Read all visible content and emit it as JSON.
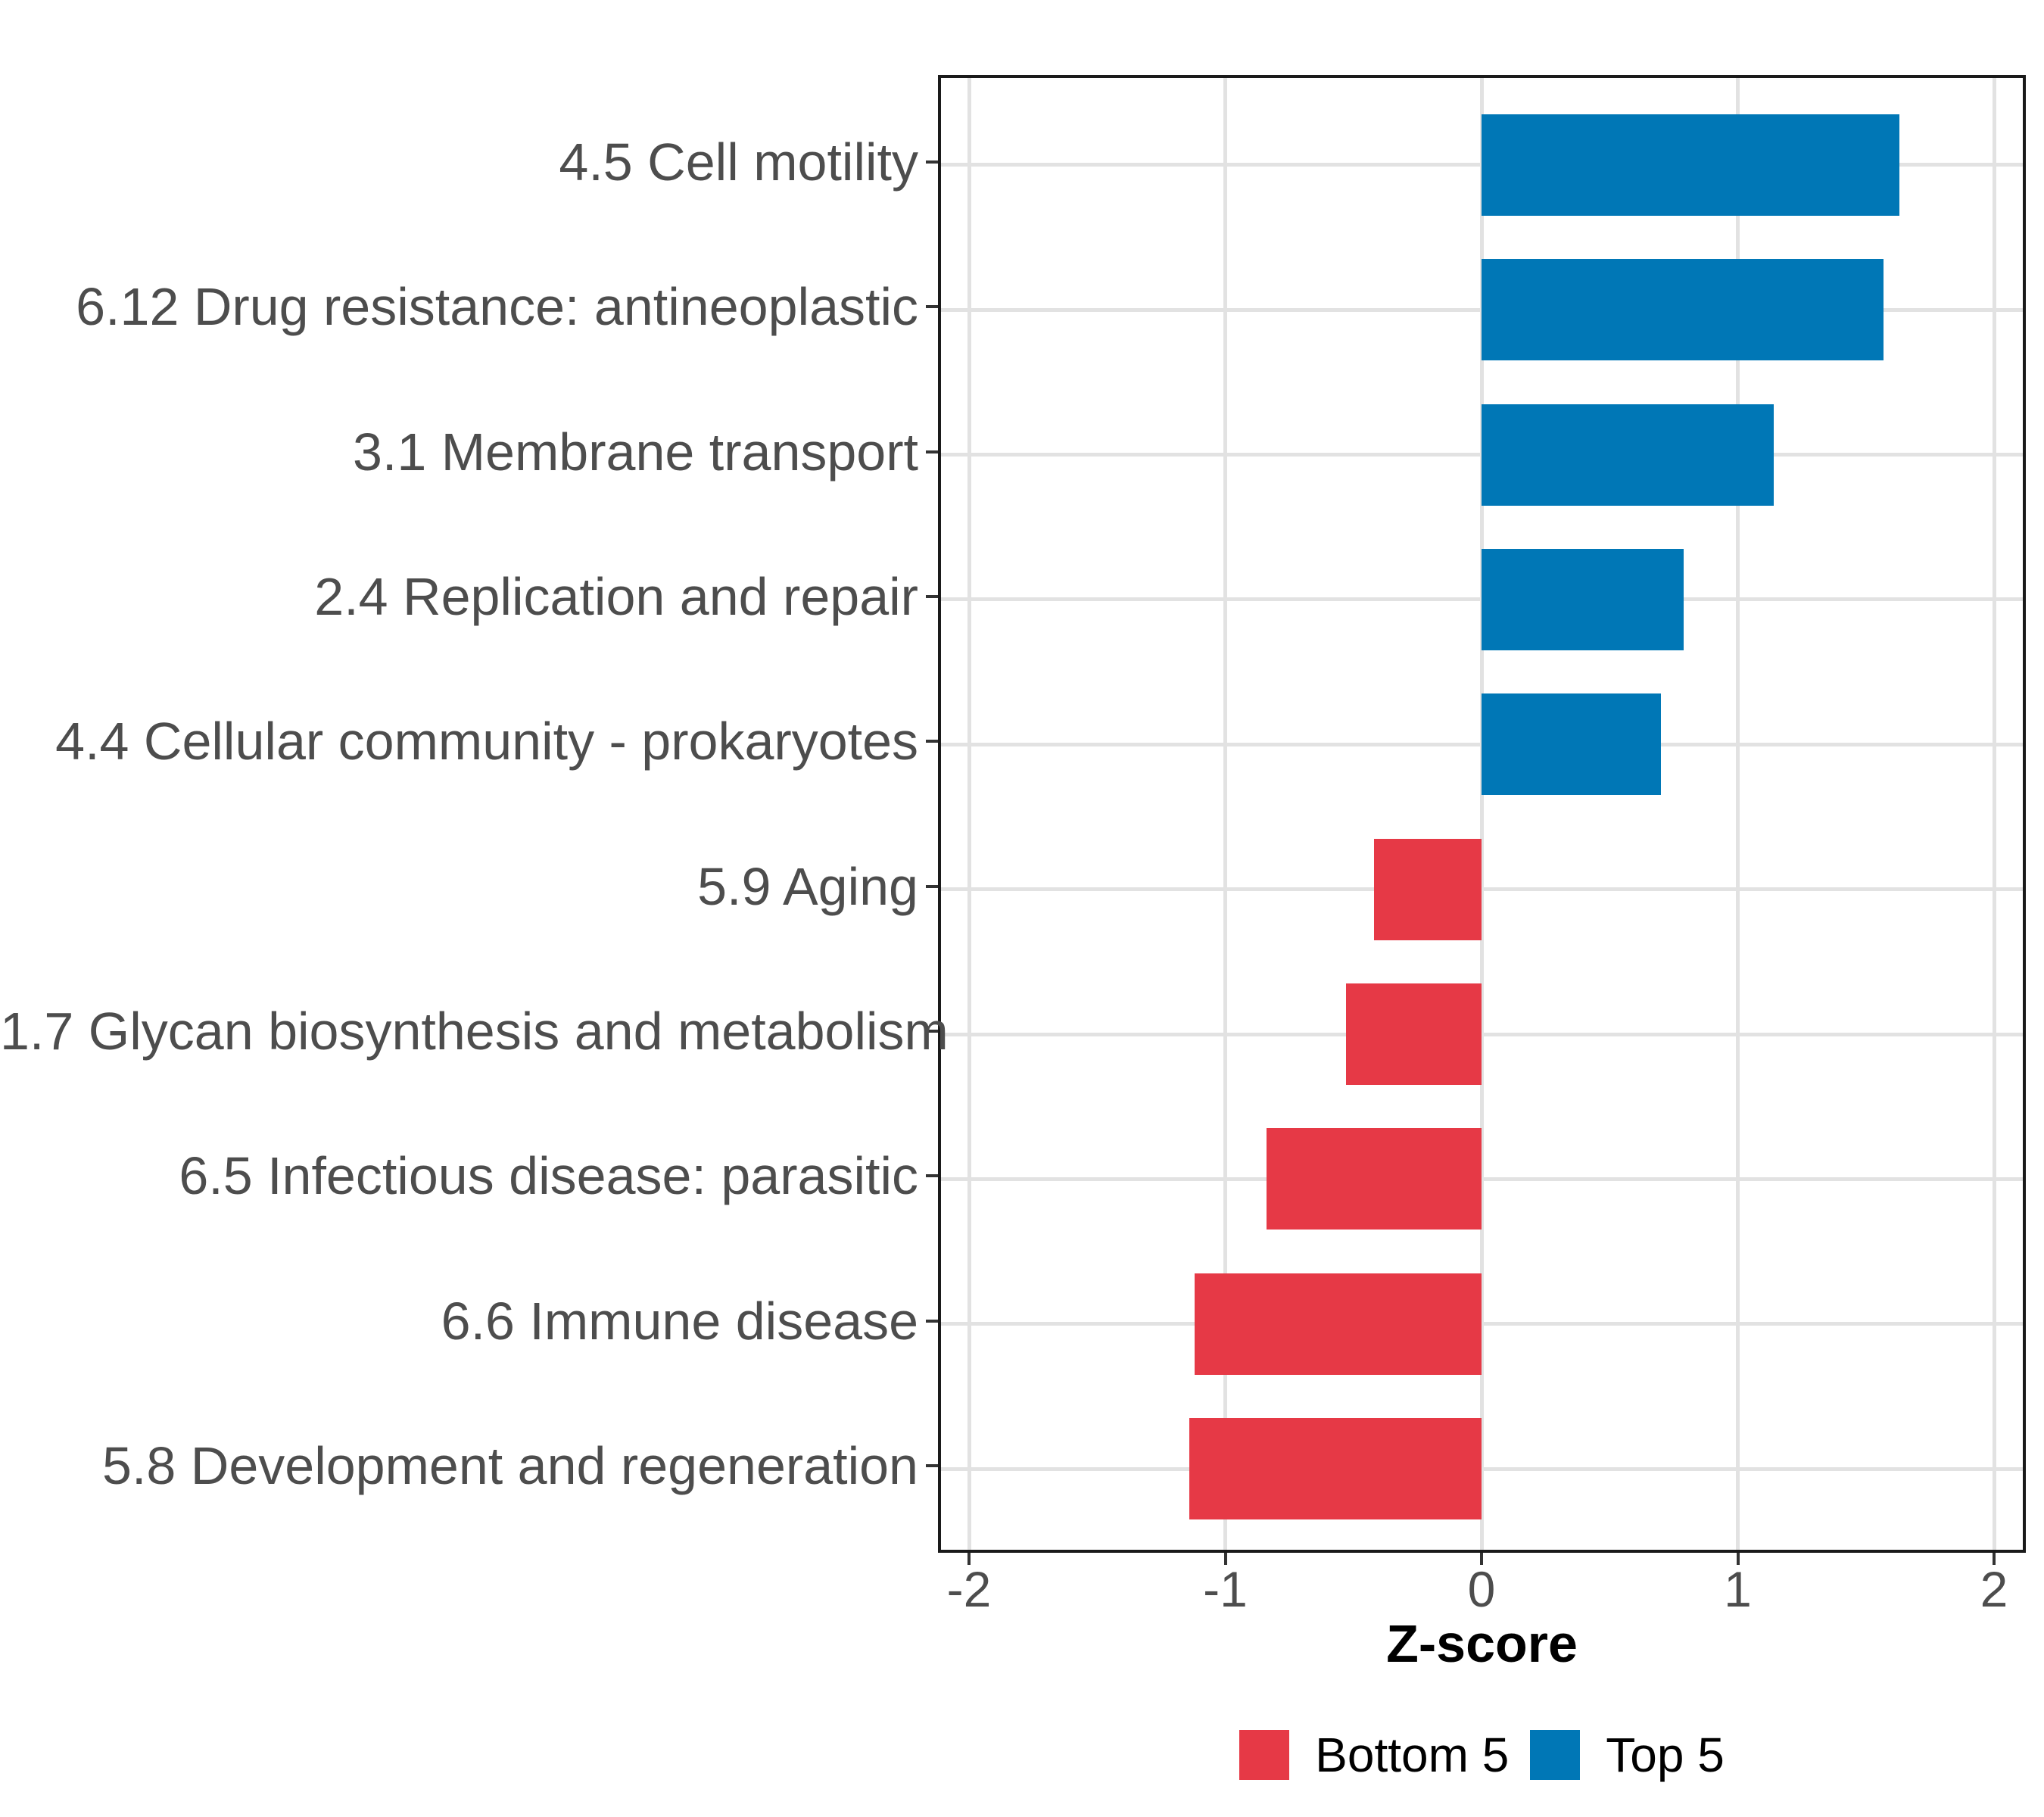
{
  "chart_data": {
    "type": "bar",
    "orientation": "horizontal",
    "title": "",
    "xlabel": "Z-score",
    "xlim": [
      -2,
      2
    ],
    "xticks": [
      "-2",
      "-1",
      "0",
      "1",
      "2"
    ],
    "xtick_values": [
      -2,
      -1,
      0,
      1,
      2
    ],
    "grid": true,
    "legend_position": "bottom",
    "categories": [
      "4.5 Cell motility",
      "6.12 Drug resistance: antineoplastic",
      "3.1 Membrane transport",
      "2.4 Replication and repair",
      "4.4 Cellular community - prokaryotes",
      "5.9 Aging",
      "1.7 Glycan biosynthesis and metabolism",
      "6.5 Infectious disease: parasitic",
      "6.6 Immune disease",
      "5.8 Development and regeneration"
    ],
    "values": [
      1.63,
      1.57,
      1.14,
      0.79,
      0.7,
      -0.42,
      -0.53,
      -0.84,
      -1.12,
      -1.14
    ],
    "groups": [
      "Top 5",
      "Top 5",
      "Top 5",
      "Top 5",
      "Top 5",
      "Bottom 5",
      "Bottom 5",
      "Bottom 5",
      "Bottom 5",
      "Bottom 5"
    ],
    "legend": [
      {
        "label": "Bottom 5",
        "color": "#E63946"
      },
      {
        "label": "Top 5",
        "color": "#0077B6"
      }
    ],
    "colors": {
      "Bottom 5": "#E63946",
      "Top 5": "#0077B6"
    },
    "axis_text_color": "#4d4d4d",
    "grid_color": "#E2E2E2",
    "border_color": "#1a1a1a"
  }
}
